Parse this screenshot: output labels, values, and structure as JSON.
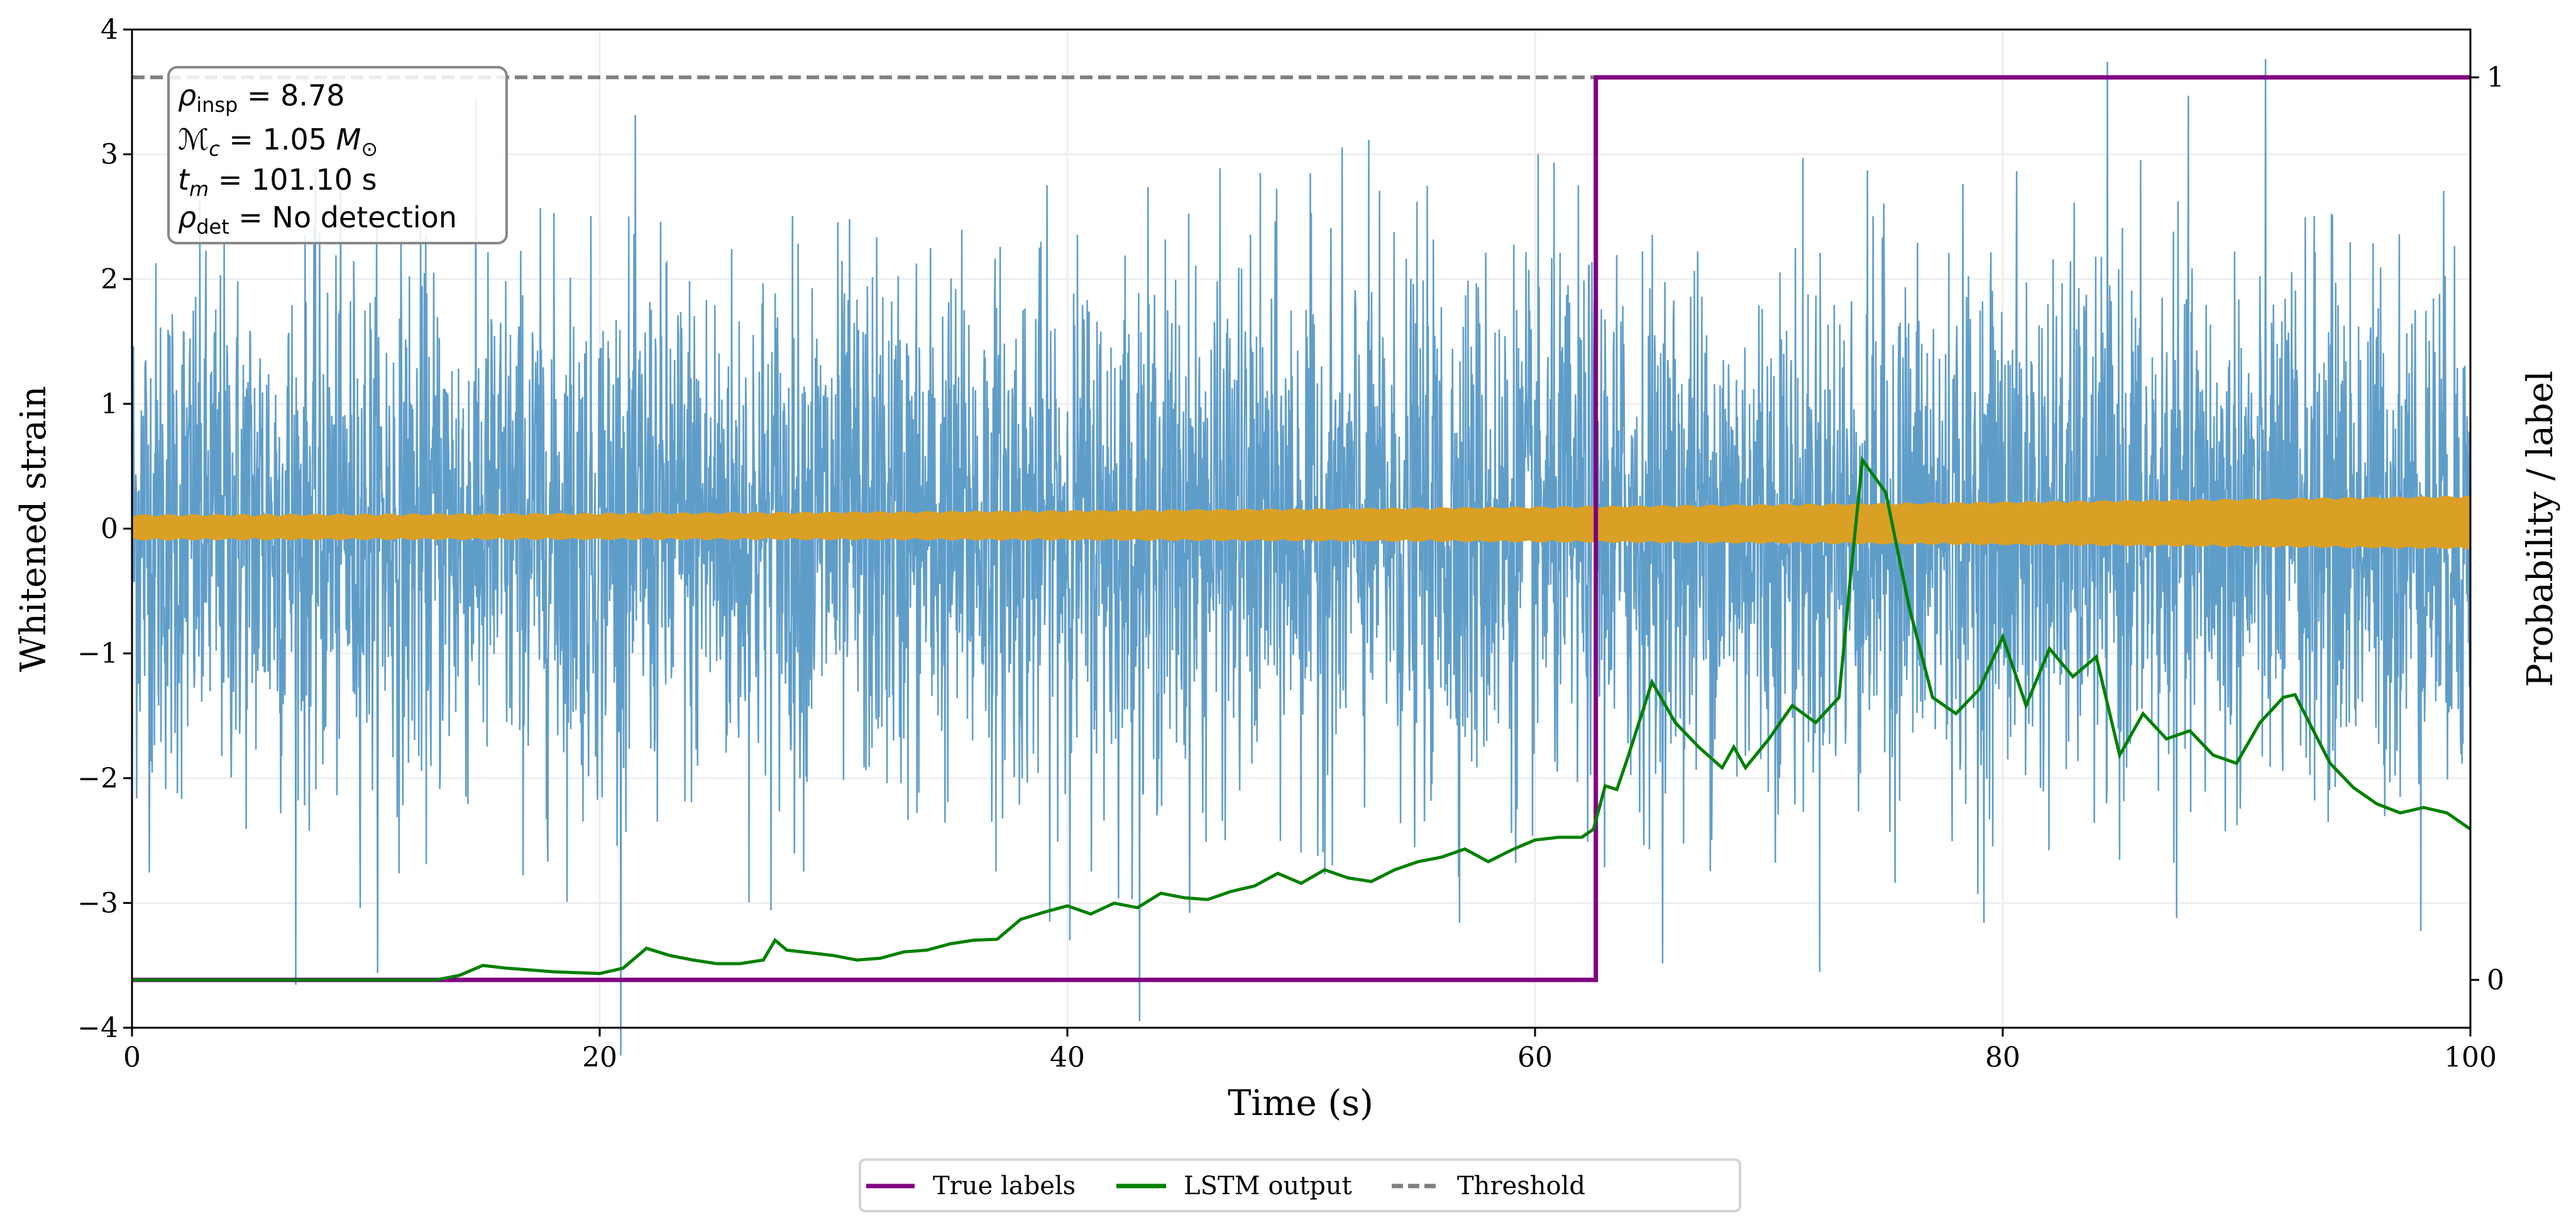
{
  "chart_data": {
    "type": "line",
    "xlabel": "Time (s)",
    "ylabel": "Whitened strain",
    "ylabel_right": "Probability / label",
    "xlim": [
      0,
      100
    ],
    "ylim": [
      -4,
      4
    ],
    "ylim_right": [
      -0.053,
      1.053
    ],
    "xticks": [
      "0",
      "20",
      "40",
      "60",
      "80",
      "100"
    ],
    "yticks": [
      "-4",
      "-3",
      "-2",
      "-1",
      "0",
      "1",
      "2",
      "3",
      "4"
    ],
    "yticks_right": [
      "0",
      "1"
    ],
    "grid": true,
    "legend_placement": "bottom-center (outside)",
    "colors": {
      "strain": "#5698c6",
      "signal": "#daa026",
      "true_labels": "#800080",
      "lstm": "#008000",
      "threshold": "#808080"
    },
    "annotation": {
      "rho_insp": "8.78",
      "chirp_mass": "1.05",
      "t_m": "101.10",
      "rho_det": "No detection"
    },
    "series": [
      {
        "name": "True labels",
        "axis": "right",
        "x": [
          0,
          62.6,
          62.6,
          100
        ],
        "y": [
          0,
          0,
          1,
          1
        ]
      },
      {
        "name": "LSTM output",
        "axis": "right",
        "x": [
          0,
          13,
          14,
          15,
          16,
          17,
          18,
          20,
          21,
          22,
          23,
          24,
          25,
          26,
          27,
          27.5,
          28,
          30,
          31,
          32,
          33,
          34,
          35,
          36,
          37,
          38,
          39,
          40,
          41,
          42,
          43,
          44,
          45,
          46,
          47,
          48,
          49,
          50,
          51,
          52,
          53,
          54,
          55,
          56,
          57,
          58,
          59,
          60,
          61,
          62,
          62.5,
          63,
          63.5,
          64,
          65,
          66,
          67,
          68,
          68.5,
          69,
          70,
          71,
          72,
          73,
          73.5,
          74,
          75,
          76,
          77,
          78,
          79,
          80,
          81,
          82,
          83,
          84,
          85,
          86,
          87,
          88,
          89,
          90,
          91,
          92,
          92.5,
          94,
          95,
          96,
          97,
          98,
          99,
          100
        ],
        "y": [
          0,
          0,
          0.005,
          0.016,
          0.013,
          0.011,
          0.009,
          0.007,
          0.013,
          0.035,
          0.027,
          0.022,
          0.018,
          0.018,
          0.022,
          0.044,
          0.033,
          0.027,
          0.022,
          0.024,
          0.031,
          0.033,
          0.04,
          0.044,
          0.045,
          0.067,
          0.075,
          0.082,
          0.073,
          0.085,
          0.08,
          0.096,
          0.091,
          0.089,
          0.098,
          0.104,
          0.118,
          0.107,
          0.122,
          0.113,
          0.109,
          0.122,
          0.131,
          0.136,
          0.145,
          0.131,
          0.144,
          0.155,
          0.158,
          0.158,
          0.167,
          0.215,
          0.211,
          0.249,
          0.33,
          0.285,
          0.258,
          0.235,
          0.258,
          0.235,
          0.267,
          0.304,
          0.285,
          0.313,
          0.449,
          0.576,
          0.54,
          0.413,
          0.313,
          0.295,
          0.322,
          0.38,
          0.304,
          0.367,
          0.336,
          0.358,
          0.249,
          0.295,
          0.267,
          0.276,
          0.249,
          0.24,
          0.285,
          0.313,
          0.316,
          0.24,
          0.213,
          0.195,
          0.185,
          0.191,
          0.185,
          0.167
        ]
      },
      {
        "name": "Threshold",
        "axis": "right",
        "y": 1.0
      }
    ]
  }
}
